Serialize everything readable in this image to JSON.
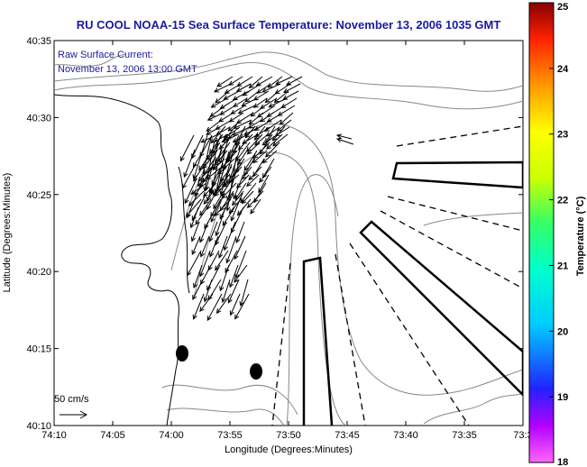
{
  "title": "RU COOL  NOAA-15  Sea Surface Temperature:  November 13, 2006 1035 GMT",
  "annotation": {
    "line1": "Raw Surface Current:",
    "line2": "November 13, 2006 13:00 GMT"
  },
  "axes": {
    "xlabel": "Longitude (Degrees:Minutes)",
    "ylabel": "Latitude (Degrees:Minutes)",
    "xticks": [
      "74:10",
      "74:05",
      "74:00",
      "73:55",
      "73:50",
      "73:45",
      "73:40",
      "73:35",
      "73:3"
    ],
    "yticks": [
      "40:35",
      "40:30",
      "40:25",
      "40:20",
      "40:15",
      "40:10"
    ]
  },
  "scale_label": "50 cm/s",
  "colorbar": {
    "label": "Temperature (°C)",
    "ticks": [
      "25",
      "24",
      "23",
      "22",
      "21",
      "20",
      "19",
      "18"
    ],
    "min": 18,
    "max": 25,
    "colors": [
      "#ff66ff",
      "#b400ff",
      "#2222ff",
      "#00ccff",
      "#00ffcc",
      "#33ff66",
      "#ccff00",
      "#ffff00",
      "#ff9900",
      "#ff2200",
      "#880000"
    ]
  }
}
